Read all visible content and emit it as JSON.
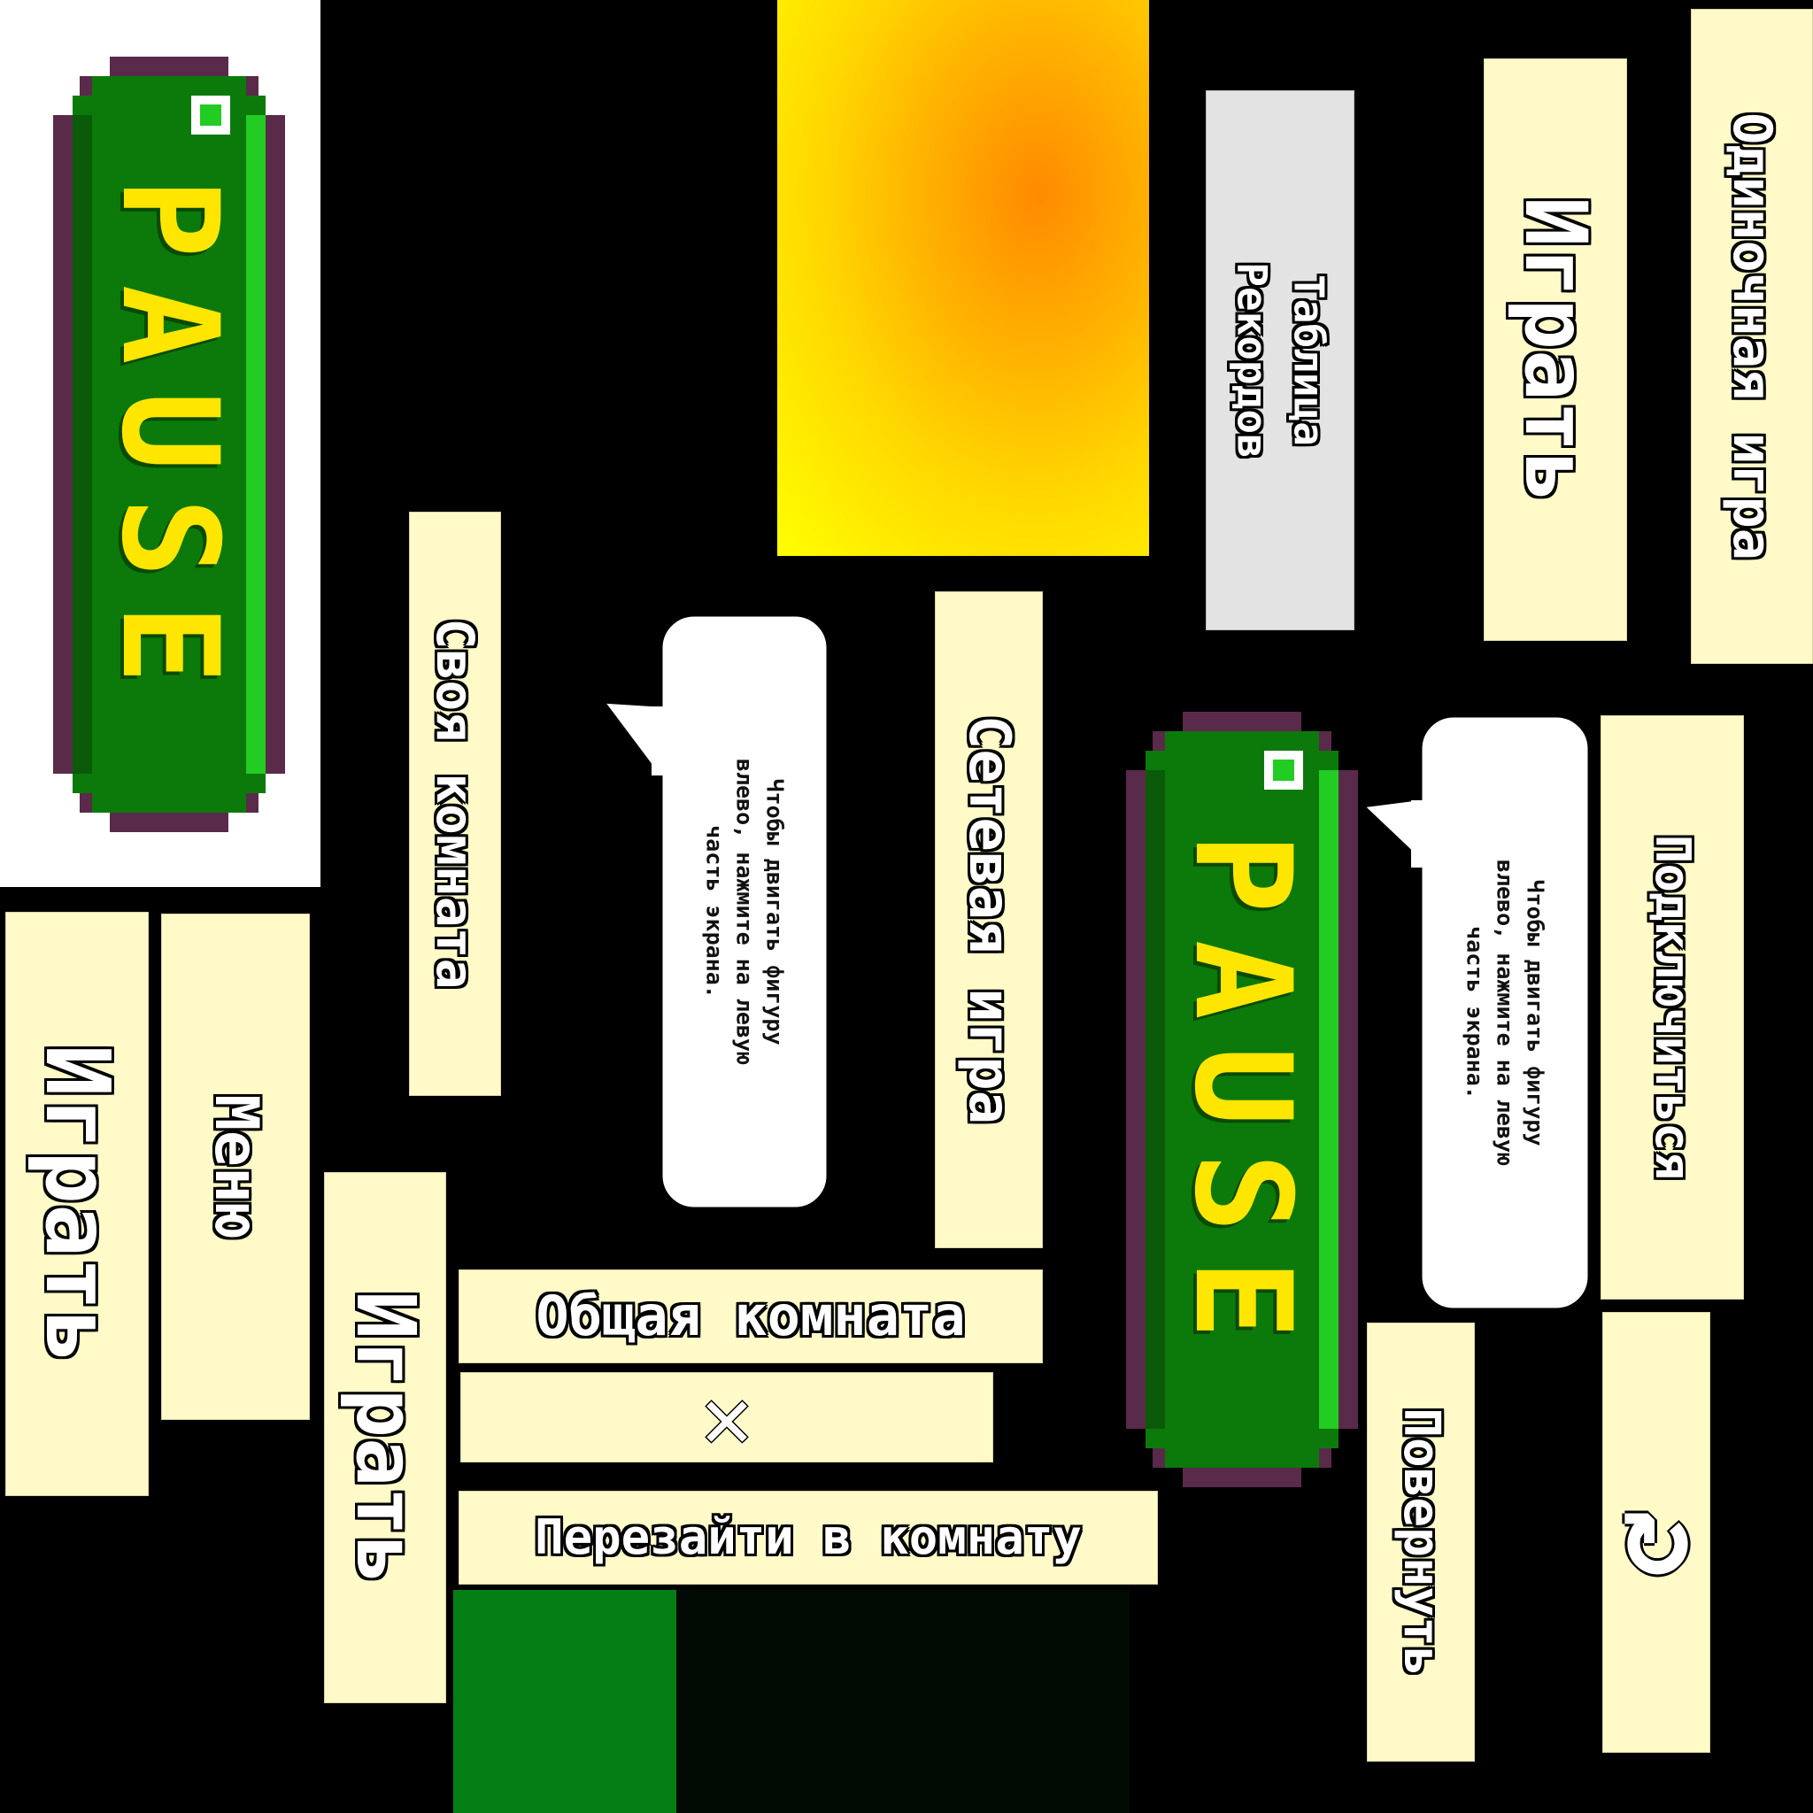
{
  "pause_banner": {
    "label": "PAUSE"
  },
  "menu": {
    "single_game": "Одиночная игра",
    "play": "Играть",
    "records_line1": "Таблица",
    "records_line2": "Рекордов",
    "own_room": "Своя комната",
    "network_game": "Сетевая игра",
    "connect": "Подключиться",
    "menu_label": "Меню",
    "common_room": "Общая комната",
    "rejoin_room": "Перезайти в комнату",
    "rotate": "Повернуть",
    "close_glyph": "✕",
    "restart_glyph": "↻"
  },
  "hint": {
    "text_line1": "Чтобы двигать фигуру",
    "text_line2": "влево, нажмите на левую",
    "text_line3": "часть экрана."
  },
  "colors": {
    "button_bg": "#fffac8",
    "banner_green": "#0b7a0b",
    "banner_border": "#5a2a4a",
    "banner_text": "#ffe600",
    "swatch_green": "#047f14",
    "gradient_orange": "#ff8a00",
    "gradient_yellow": "#ffff00"
  }
}
